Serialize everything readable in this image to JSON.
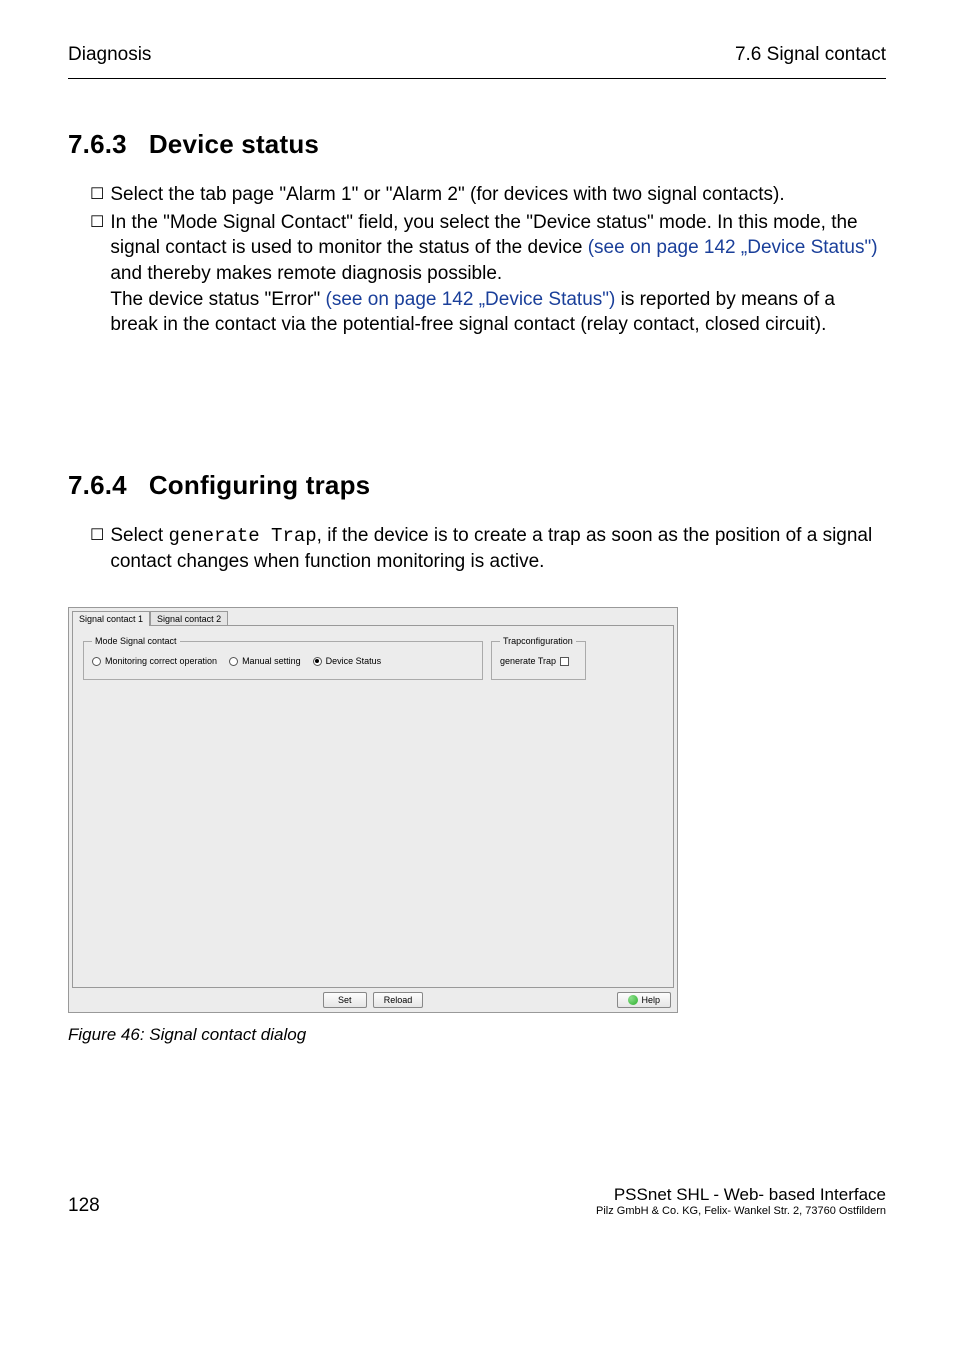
{
  "header": {
    "left": "Diagnosis",
    "right": "7.6  Signal contact"
  },
  "section1": {
    "num": "7.6.3",
    "title": "Device status",
    "item1": "Select the tab page \"Alarm 1\" or \"Alarm 2\" (for devices with two signal contacts).",
    "item2a": "In the \"Mode Signal Contact\" field, you select the \"Device status\" mode. In this mode, the signal contact is used to monitor the status of the device ",
    "link1": "(see on page 142 „Device Status\")",
    "item2b": " and thereby makes remote diagnosis possible.",
    "item2c": "The device status \"Error\" ",
    "link2": "(see on page 142 „Device Status\")",
    "item2d": " is reported by means of a break in the contact via the potential-free signal contact (relay contact, closed circuit)."
  },
  "section2": {
    "num": "7.6.4",
    "title": "Configuring traps",
    "item1a": "Select ",
    "code": "generate Trap",
    "item1b": ", if the device is to create a trap as soon as the position of a signal contact changes when function monitoring is active."
  },
  "dialog": {
    "tab1": "Signal contact 1",
    "tab2": "Signal contact 2",
    "legend_mode": "Mode Signal contact",
    "opt_monitor": "Monitoring correct operation",
    "opt_manual": "Manual setting",
    "opt_device": "Device Status",
    "legend_trap": "Trapconfiguration",
    "gen_trap": "generate Trap",
    "btn_set": "Set",
    "btn_reload": "Reload",
    "btn_help": "Help"
  },
  "caption": "Figure 46: Signal contact dialog",
  "footer": {
    "page": "128",
    "product": "PSSnet SHL - Web- based Interface",
    "addr": "Pilz GmbH & Co. KG, Felix- Wankel Str. 2, 73760 Ostfildern"
  }
}
